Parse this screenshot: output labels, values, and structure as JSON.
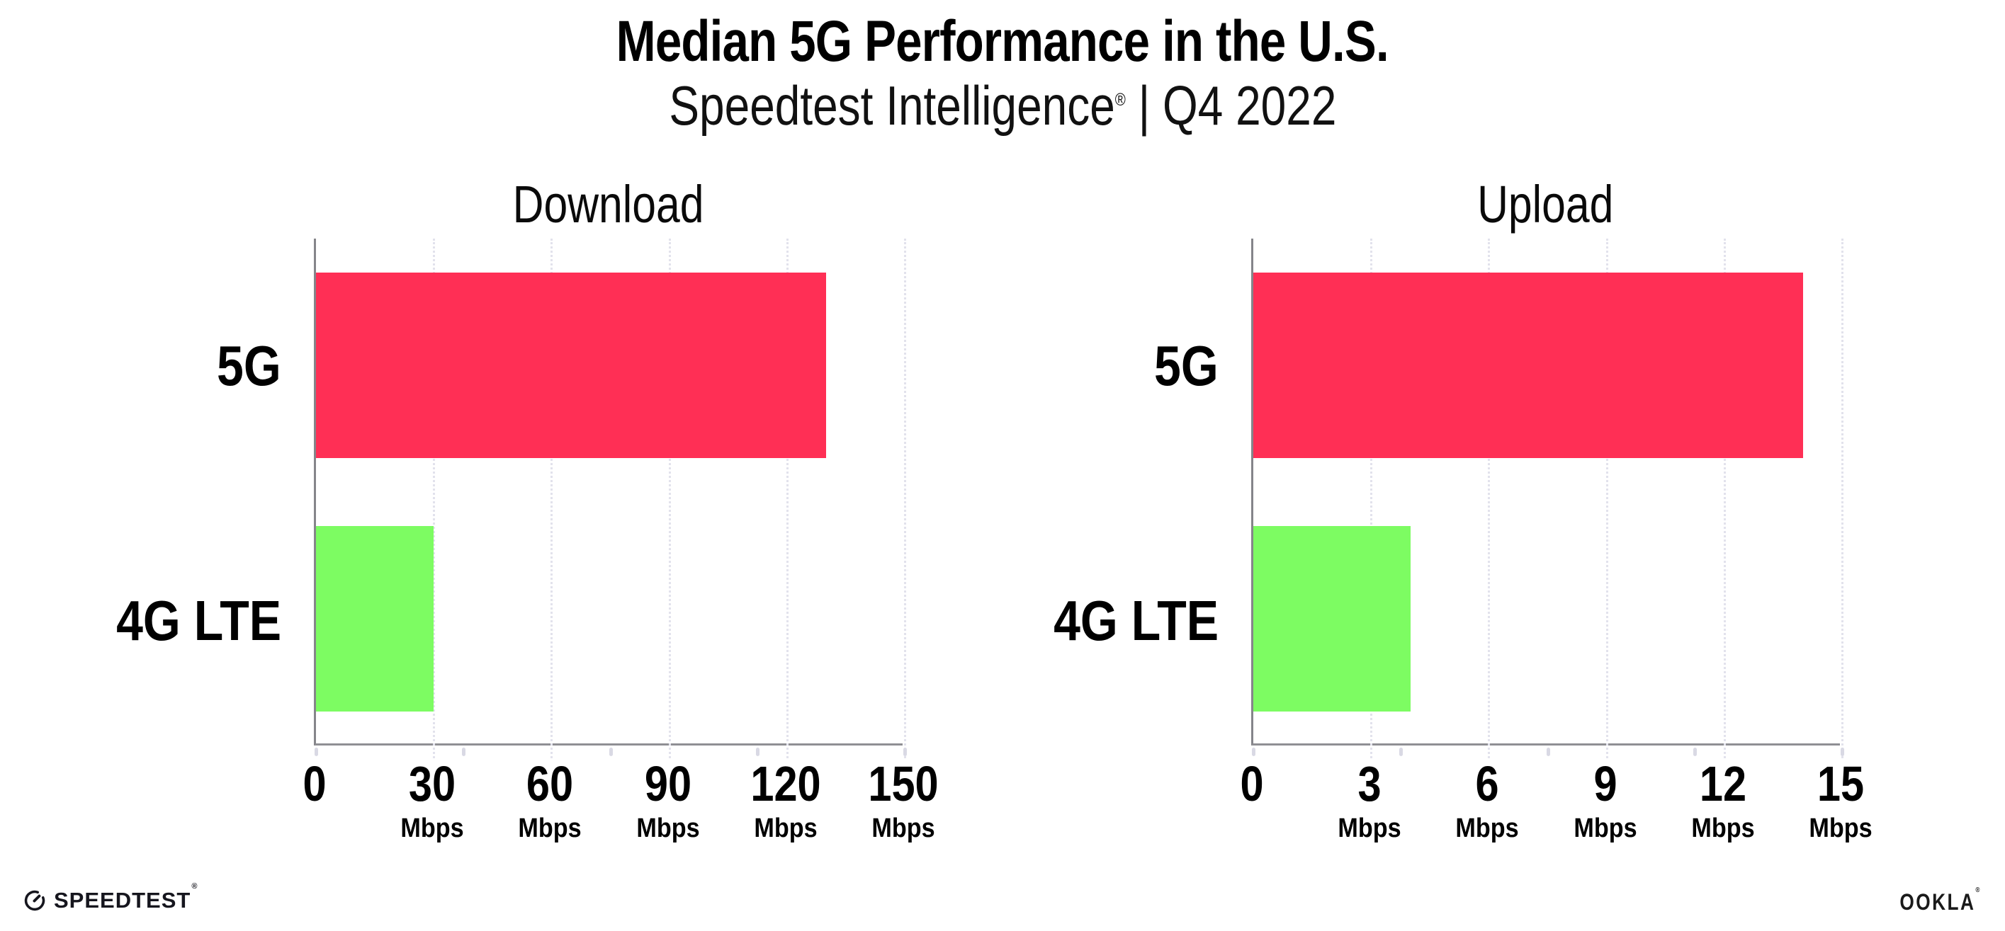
{
  "header": {
    "title": "Median 5G Performance in the U.S.",
    "subtitle_brand": "Speedtest Intelligence",
    "subtitle_reg": "®",
    "subtitle_rest": " | Q4 2022"
  },
  "footer": {
    "speedtest_label": "SPEEDTEST",
    "speedtest_reg": "®",
    "ookla_label": "OOKLA",
    "ookla_reg": "®"
  },
  "colors": {
    "bar_5g": "#ff2f55",
    "bar_4g_lte": "#7dfc62",
    "gridline": "#e2e2ec",
    "axis": "#85858a",
    "text": "#000000"
  },
  "chart_data": [
    {
      "type": "bar",
      "orientation": "horizontal",
      "title": "Download",
      "categories": [
        "5G",
        "4G LTE"
      ],
      "values": [
        130,
        30
      ],
      "unit": "Mbps",
      "xlim": [
        0,
        150
      ],
      "xticks": [
        0,
        30,
        60,
        90,
        120,
        150
      ],
      "grid": "vertical-dotted",
      "legend": "none",
      "bar_colors": [
        "#ff2f55",
        "#7dfc62"
      ]
    },
    {
      "type": "bar",
      "orientation": "horizontal",
      "title": "Upload",
      "categories": [
        "5G",
        "4G LTE"
      ],
      "values": [
        14,
        4
      ],
      "unit": "Mbps",
      "xlim": [
        0,
        15
      ],
      "xticks": [
        0,
        3,
        6,
        9,
        12,
        15
      ],
      "grid": "vertical-dotted",
      "legend": "none",
      "bar_colors": [
        "#ff2f55",
        "#7dfc62"
      ]
    }
  ]
}
